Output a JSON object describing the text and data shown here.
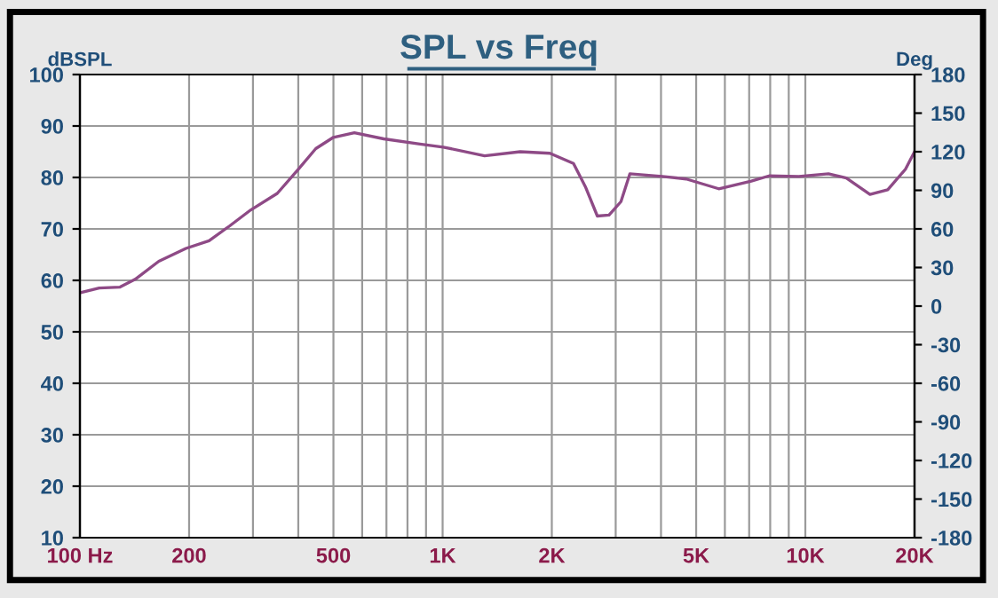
{
  "chart_data": {
    "type": "line",
    "title": "SPL vs Freq",
    "ylabel": "dBSPL",
    "y2label": "Deg",
    "log": "x",
    "grid": true,
    "legend": false,
    "series": [
      {
        "color": "#8e4a86",
        "x": [
          100,
          113,
          129,
          142,
          165,
          196,
          227,
          259,
          296,
          350,
          399,
          447,
          500,
          571,
          688,
          866,
          1004,
          1305,
          1636,
          1975,
          2295,
          2475,
          2670,
          2876,
          3102,
          3282,
          4036,
          4694,
          5771,
          7097,
          7943,
          9590,
          11580,
          12970,
          15070,
          16870,
          18880,
          20000
        ],
        "values": [
          57.6,
          58.5,
          58.7,
          60.2,
          63.7,
          66.2,
          67.7,
          70.6,
          73.7,
          76.9,
          81.5,
          85.6,
          87.8,
          88.7,
          87.5,
          86.5,
          85.9,
          84.2,
          85.0,
          84.7,
          82.7,
          78.2,
          72.5,
          72.7,
          75.3,
          80.7,
          80.2,
          79.7,
          77.8,
          79.3,
          80.3,
          80.2,
          80.7,
          79.9,
          76.7,
          77.6,
          81.6,
          85.0
        ]
      }
    ],
    "xlim": [
      100,
      20000
    ],
    "xticks": [
      {
        "value": 100,
        "label": "100 Hz"
      },
      200,
      {
        "value": 300,
        "label": null
      },
      {
        "value": 400,
        "label": null
      },
      500,
      {
        "value": 600,
        "label": null
      },
      {
        "value": 700,
        "label": null
      },
      {
        "value": 800,
        "label": null
      },
      {
        "value": 900,
        "label": null
      },
      {
        "value": 1000,
        "label": "1K"
      },
      {
        "value": 2000,
        "label": "2K"
      },
      {
        "value": 3000,
        "label": null
      },
      {
        "value": 4000,
        "label": null
      },
      {
        "value": 5000,
        "label": "5K"
      },
      {
        "value": 6000,
        "label": null
      },
      {
        "value": 7000,
        "label": null
      },
      {
        "value": 8000,
        "label": null
      },
      {
        "value": 9000,
        "label": null
      },
      {
        "value": 10000,
        "label": "10K"
      },
      {
        "value": 20000,
        "label": "20K"
      }
    ],
    "ylim": [
      10,
      100
    ],
    "yticks": [
      10,
      20,
      30,
      40,
      50,
      60,
      70,
      80,
      90,
      100
    ],
    "y2lim": [
      -180,
      180
    ],
    "y2ticks": [
      -180,
      -150,
      -120,
      -90,
      -60,
      -30,
      0,
      30,
      60,
      90,
      120,
      150,
      180
    ]
  }
}
